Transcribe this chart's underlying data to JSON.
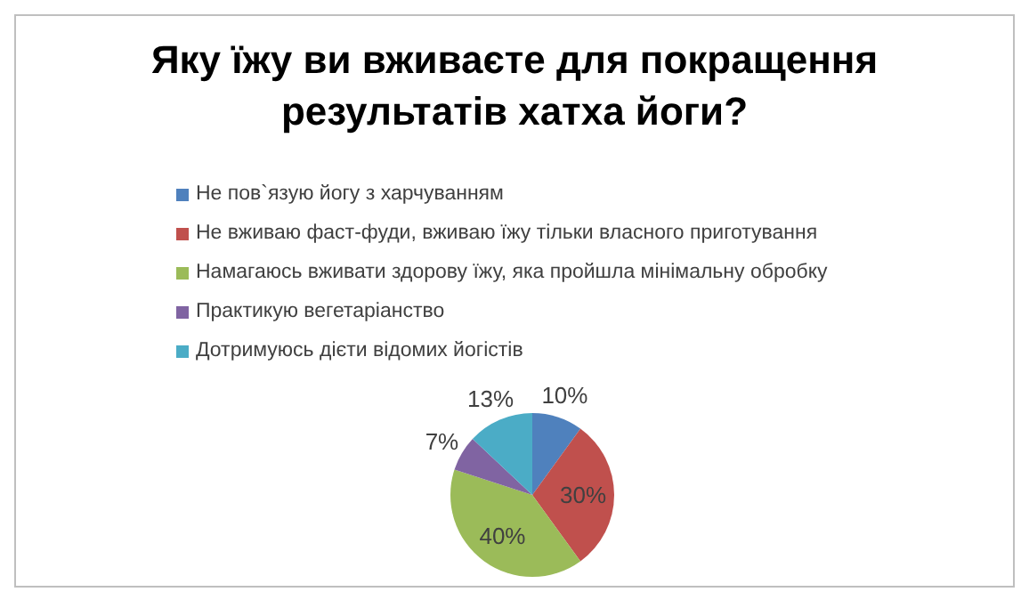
{
  "chart_data": {
    "type": "pie",
    "title": "Яку їжу ви вживаєте для покращення результатів хатха йоги?",
    "categories": [
      "Не пов`язую йогу з харчуванням",
      "Не вживаю фаст-фуди, вживаю їжу тільки власного приготування",
      "Намагаюсь вживати здорову їжу, яка пройшла мінімальну обробку",
      "Практикую вегетаріанство",
      "Дотримуюсь дієти відомих йогістів"
    ],
    "values": [
      10,
      30,
      40,
      7,
      13
    ],
    "colors": [
      "#4f81bd",
      "#c0504d",
      "#9bbb59",
      "#8064a2",
      "#4bacc6"
    ],
    "value_labels": [
      "10%",
      "30%",
      "40%",
      "7%",
      "13%"
    ],
    "legend": "top left"
  }
}
